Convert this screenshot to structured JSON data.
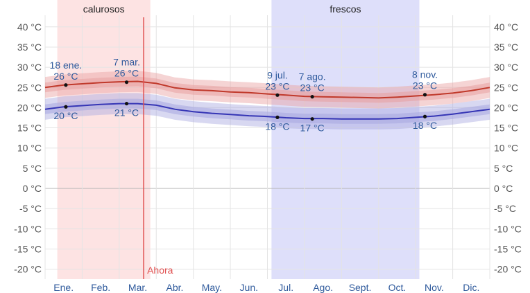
{
  "chart_data": {
    "type": "line",
    "title": "",
    "xlabel": "",
    "ylabel": "",
    "ylim": [
      -22,
      42
    ],
    "grid": true,
    "y_ticks": [
      40,
      35,
      30,
      25,
      20,
      15,
      10,
      5,
      0,
      -5,
      -10,
      -15,
      -20
    ],
    "y_tick_labels": [
      "40 °C",
      "35 °C",
      "30 °C",
      "25 °C",
      "20 °C",
      "15 °C",
      "10 °C",
      "5 °C",
      "0 °C",
      "-5 °C",
      "-10 °C",
      "-15 °C",
      "-20 °C"
    ],
    "months": [
      "Ene.",
      "Feb.",
      "Mar.",
      "Abr.",
      "May.",
      "Jun.",
      "Jul.",
      "Ago.",
      "Sept.",
      "Oct.",
      "Nov.",
      "Dic."
    ],
    "x": [
      0,
      0.5,
      1,
      1.5,
      2,
      2.5,
      3,
      3.5,
      4,
      4.5,
      5,
      5.5,
      6,
      6.5,
      7,
      7.5,
      8,
      8.5,
      9,
      9.5,
      10,
      10.5,
      11,
      11.5,
      12
    ],
    "series": [
      {
        "color": "#c0392b",
        "band_color": "#e8a0a0",
        "values": [
          25.0,
          25.6,
          25.9,
          26.2,
          26.4,
          26.5,
          26.0,
          24.9,
          24.4,
          24.2,
          23.9,
          23.7,
          23.4,
          23.1,
          22.8,
          22.7,
          22.6,
          22.5,
          22.4,
          22.6,
          22.9,
          23.2,
          23.6,
          24.2,
          25.0
        ]
      },
      {
        "color": "#3535b5",
        "band_color": "#a8a8e0",
        "values": [
          19.6,
          20.2,
          20.5,
          20.8,
          21.0,
          21.0,
          20.6,
          19.6,
          19.0,
          18.6,
          18.3,
          18.0,
          17.8,
          17.5,
          17.3,
          17.3,
          17.2,
          17.2,
          17.2,
          17.3,
          17.6,
          17.9,
          18.4,
          19.0,
          19.6
        ]
      }
    ],
    "bands": [
      {
        "label": "calurosos",
        "x_start": 0.33,
        "x_end": 2.84,
        "color": "#fde3e3"
      },
      {
        "label": "frescos",
        "x_start": 6.11,
        "x_end": 10.1,
        "color": "#dedffa"
      }
    ],
    "now_marker": {
      "label": "Ahora",
      "x": 2.66,
      "color": "#e05050"
    },
    "annotations": [
      {
        "x": 0.56,
        "y": 25.6,
        "date": "18 ene.",
        "value": "26 °C",
        "position": "above"
      },
      {
        "x": 2.2,
        "y": 26.3,
        "date": "7 mar.",
        "value": "26 °C",
        "position": "above"
      },
      {
        "x": 6.27,
        "y": 23.1,
        "date": "9 jul.",
        "value": "23 °C",
        "position": "above"
      },
      {
        "x": 7.21,
        "y": 22.7,
        "date": "7 ago.",
        "value": "23 °C",
        "position": "above"
      },
      {
        "x": 10.25,
        "y": 23.2,
        "date": "8 nov.",
        "value": "23 °C",
        "position": "above"
      },
      {
        "x": 0.56,
        "y": 20.2,
        "value": "20 °C",
        "position": "below"
      },
      {
        "x": 2.2,
        "y": 21.0,
        "value": "21 °C",
        "position": "below"
      },
      {
        "x": 6.27,
        "y": 17.6,
        "value": "18 °C",
        "position": "below"
      },
      {
        "x": 7.21,
        "y": 17.2,
        "value": "17 °C",
        "position": "below"
      },
      {
        "x": 10.25,
        "y": 17.8,
        "value": "18 °C",
        "position": "below"
      }
    ]
  }
}
